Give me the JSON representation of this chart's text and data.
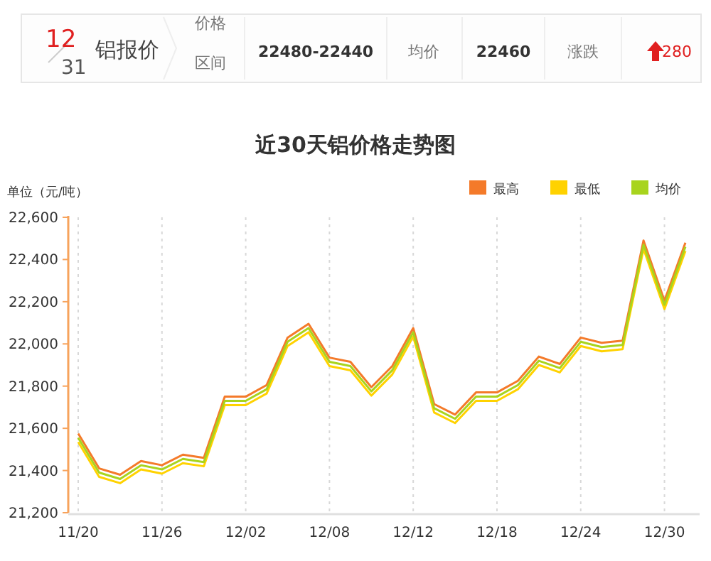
{
  "chart_data": [
    {
      "type": "other",
      "title": "铝报价",
      "annotations": [
        "12",
        "31",
        "价格",
        "区间",
        "22480-22440",
        "均价",
        "22460",
        "涨跌",
        "280"
      ]
    },
    {
      "type": "line",
      "title": "近30天铝价格走势图",
      "ylabel": "单位（元/吨）",
      "categories": [
        "11/20",
        null,
        null,
        null,
        "11/26",
        null,
        null,
        null,
        "12/02",
        null,
        null,
        null,
        "12/08",
        null,
        null,
        null,
        "12/12",
        null,
        null,
        null,
        "12/18",
        null,
        null,
        null,
        "12/24",
        null,
        null,
        null,
        "12/30",
        null
      ],
      "series": [
        {
          "name": "最高",
          "color": "#f47a2a",
          "values": [
            21575,
            21410,
            21380,
            21445,
            21425,
            21475,
            21460,
            21750,
            21750,
            21805,
            22030,
            22095,
            21935,
            21915,
            21795,
            21895,
            22075,
            21715,
            21665,
            21770,
            21770,
            21825,
            21940,
            21905,
            22030,
            22005,
            22015,
            22490,
            22205,
            22480
          ]
        },
        {
          "name": "最低",
          "color": "#ffd200",
          "values": [
            21535,
            21370,
            21340,
            21405,
            21385,
            21435,
            21420,
            21710,
            21710,
            21765,
            21990,
            22055,
            21895,
            21875,
            21755,
            21855,
            22035,
            21675,
            21625,
            21730,
            21730,
            21785,
            21900,
            21865,
            21990,
            21965,
            21975,
            22450,
            22165,
            22440
          ]
        },
        {
          "name": "均价",
          "color": "#a8d41e",
          "values": [
            21555,
            21390,
            21360,
            21425,
            21405,
            21455,
            21440,
            21730,
            21730,
            21785,
            22010,
            22075,
            21915,
            21895,
            21775,
            21875,
            22055,
            21695,
            21645,
            21750,
            21750,
            21805,
            21920,
            21885,
            22010,
            21985,
            21995,
            22470,
            22185,
            22460
          ]
        }
      ],
      "ylim": [
        21200,
        22600
      ],
      "yticks": [
        {
          "value": 21200,
          "label": "21,200"
        },
        {
          "value": 21400,
          "label": "21,400"
        },
        {
          "value": 21600,
          "label": "21,600"
        },
        {
          "value": 21800,
          "label": "21,800"
        },
        {
          "value": 22000,
          "label": "22,000"
        },
        {
          "value": 22200,
          "label": "22,200"
        },
        {
          "value": 22400,
          "label": "22,400"
        },
        {
          "value": 22600,
          "label": "22,600"
        }
      ],
      "grid": "x",
      "legend": "top right"
    }
  ]
}
